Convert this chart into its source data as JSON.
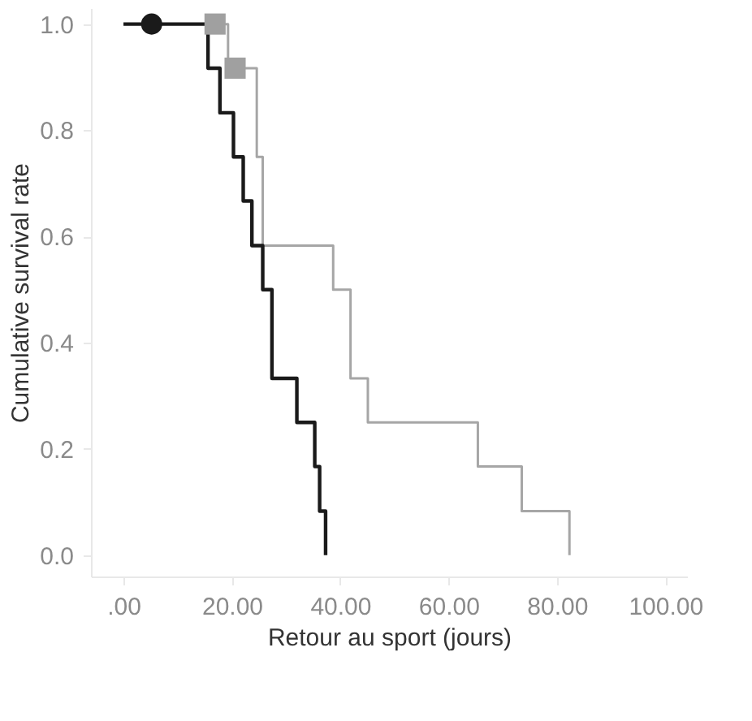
{
  "chart_data": {
    "type": "step",
    "xlabel": "Retour au sport (jours)",
    "ylabel": "Cumulative survival rate",
    "xlim": [
      -6,
      104
    ],
    "ylim": [
      -0.04,
      1.03
    ],
    "xticks": [
      {
        "value": 0,
        "label": ".00"
      },
      {
        "value": 20,
        "label": "20.00"
      },
      {
        "value": 40,
        "label": "40.00"
      },
      {
        "value": 60,
        "label": "60.00"
      },
      {
        "value": 80,
        "label": "80.00"
      },
      {
        "value": 100,
        "label": "100.00"
      }
    ],
    "yticks": [
      {
        "value": 0,
        "label": "0.0"
      },
      {
        "value": 0.2,
        "label": "0.2"
      },
      {
        "value": 0.4,
        "label": "0.4"
      },
      {
        "value": 0.6,
        "label": "0.6"
      },
      {
        "value": 0.8,
        "label": "0.8"
      },
      {
        "value": 1.0,
        "label": "1.0"
      }
    ],
    "grid": false,
    "line_style": "solid",
    "series": [
      {
        "color": "#a6a6a6",
        "marker": "none",
        "x": [
          0,
          19.3,
          24.6,
          25.7,
          38.7,
          41.9,
          45.1,
          65.4,
          73.5,
          82.3
        ],
        "values": [
          1,
          0.917,
          0.75,
          0.583,
          0.5,
          0.333,
          0.25,
          0.167,
          0.083,
          0
        ]
      },
      {
        "color": "#1a1a1a",
        "marker": "none",
        "x": [
          0,
          15.6,
          17.8,
          20.3,
          22.1,
          23.7,
          25.7,
          27.4,
          32.0,
          35.3,
          36.2,
          37.3
        ],
        "values": [
          1,
          0.917,
          0.833,
          0.75,
          0.667,
          0.583,
          0.5,
          0.333,
          0.25,
          0.167,
          0.083,
          0
        ]
      },
      {
        "type": "scatter",
        "color": "#1a1a1a",
        "marker": "circle",
        "x": [
          5.2
        ],
        "values": [
          1.0
        ]
      },
      {
        "type": "scatter",
        "color": "#a0a0a0",
        "marker": "square",
        "x": [
          16.9,
          20.6
        ],
        "values": [
          1.0,
          0.917
        ]
      }
    ]
  }
}
